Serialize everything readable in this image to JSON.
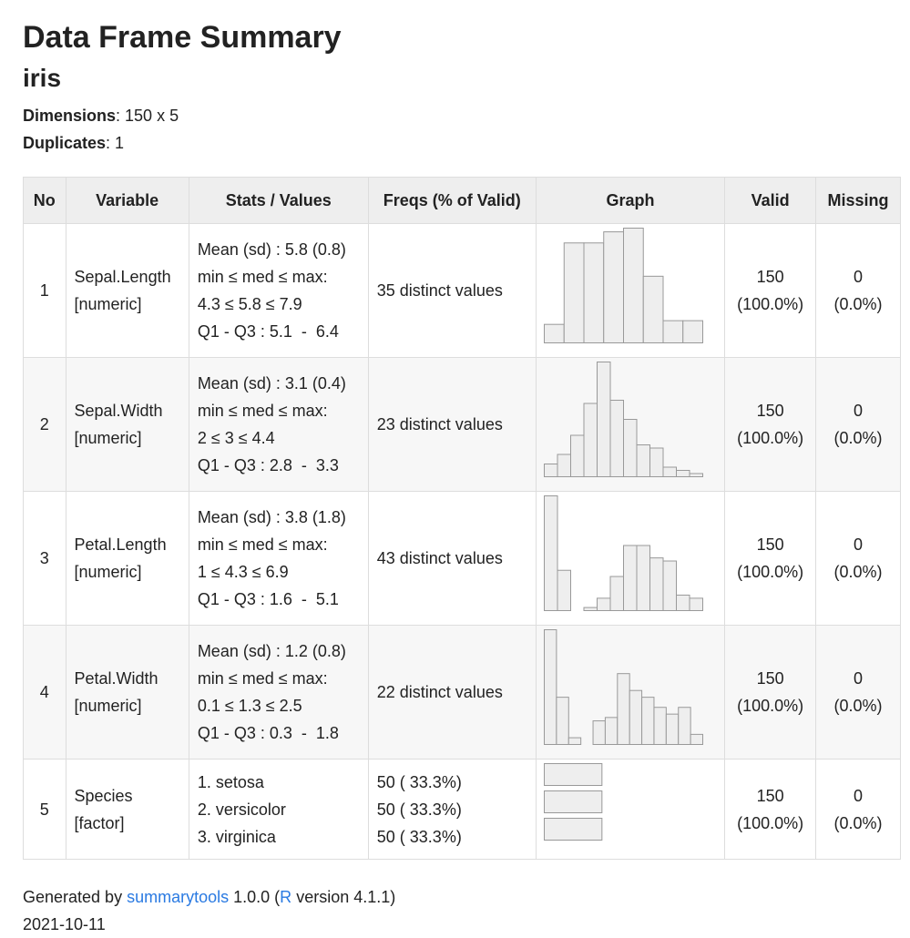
{
  "header": {
    "title": "Data Frame Summary",
    "subtitle": "iris",
    "dimensions_label": "Dimensions",
    "dimensions": ": 150 x 5",
    "duplicates_label": "Duplicates",
    "duplicates": ": 1"
  },
  "table": {
    "columns": [
      "No",
      "Variable",
      "Stats / Values",
      "Freqs (% of Valid)",
      "Graph",
      "Valid",
      "Missing"
    ],
    "rows": [
      {
        "no": 1,
        "variable": "Sepal.Length",
        "type": "[numeric]",
        "stats": [
          "Mean (sd) : 5.8 (0.8)",
          "min ≤ med ≤ max:",
          "4.3 ≤ 5.8 ≤ 7.9",
          "Q1 - Q3 : 5.1  -  6.4"
        ],
        "freqs": "35 distinct values",
        "graph": [
          5,
          27,
          27,
          30,
          31,
          18,
          6,
          6
        ],
        "valid": 150,
        "valid_pct": "(100.0%)",
        "missing": 0,
        "missing_pct": "(0.0%)"
      },
      {
        "no": 2,
        "variable": "Sepal.Width",
        "type": "[numeric]",
        "stats": [
          "Mean (sd) : 3.1 (0.4)",
          "min ≤ med ≤ max:",
          "2 ≤ 3 ≤ 4.4",
          "Q1 - Q3 : 2.8  -  3.3"
        ],
        "freqs": "23 distinct values",
        "graph": [
          4,
          7,
          13,
          23,
          36,
          24,
          18,
          10,
          9,
          3,
          2,
          1
        ],
        "valid": 150,
        "valid_pct": "(100.0%)",
        "missing": 0,
        "missing_pct": "(0.0%)"
      },
      {
        "no": 3,
        "variable": "Petal.Length",
        "type": "[numeric]",
        "stats": [
          "Mean (sd) : 3.8 (1.8)",
          "min ≤ med ≤ max:",
          "1 ≤ 4.3 ≤ 6.9",
          "Q1 - Q3 : 1.6  -  5.1"
        ],
        "freqs": "43 distinct values",
        "graph": [
          37,
          13,
          0,
          1,
          4,
          11,
          21,
          21,
          17,
          16,
          5,
          4
        ],
        "valid": 150,
        "valid_pct": "(100.0%)",
        "missing": 0,
        "missing_pct": "(0.0%)"
      },
      {
        "no": 4,
        "variable": "Petal.Width",
        "type": "[numeric]",
        "stats": [
          "Mean (sd) : 1.2 (0.8)",
          "min ≤ med ≤ max:",
          "0.1 ≤ 1.3 ≤ 2.5",
          "Q1 - Q3 : 0.3  -  1.8"
        ],
        "freqs": "22 distinct values",
        "graph": [
          34,
          14,
          2,
          0,
          7,
          8,
          21,
          16,
          14,
          11,
          9,
          11,
          3
        ],
        "valid": 150,
        "valid_pct": "(100.0%)",
        "missing": 0,
        "missing_pct": "(0.0%)"
      },
      {
        "no": 5,
        "variable": "Species",
        "type": "[factor]",
        "stats": [
          "1. setosa",
          "2. versicolor",
          "3. virginica"
        ],
        "freqs": [
          {
            "value": 50,
            "label": "50 ( 33.3%)"
          },
          {
            "value": 50,
            "label": "50 ( 33.3%)"
          },
          {
            "value": 50,
            "label": "50 ( 33.3%)"
          }
        ],
        "valid": 150,
        "valid_pct": "(100.0%)",
        "missing": 0,
        "missing_pct": "(0.0%)"
      }
    ]
  },
  "footer": {
    "generated_by": "Generated by",
    "package": "summarytools",
    "version": "1.0.0 (",
    "r": "R",
    "r_version": "version 4.1.1)",
    "date": "2021-10-11"
  }
}
